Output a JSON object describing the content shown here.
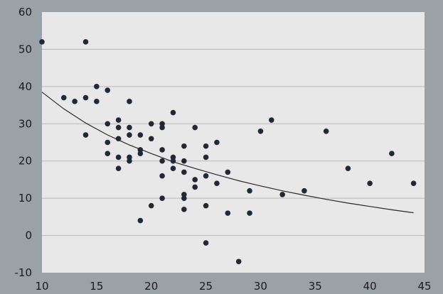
{
  "chart_data": {
    "type": "scatter",
    "title": "",
    "xlabel": "",
    "ylabel": "",
    "xlim": [
      10,
      45
    ],
    "ylim": [
      -10,
      60
    ],
    "x_ticks": [
      10,
      15,
      20,
      25,
      30,
      35,
      40,
      45
    ],
    "y_ticks": [
      -10,
      0,
      10,
      20,
      30,
      40,
      50,
      60
    ],
    "grid": "horizontal",
    "legend": "none",
    "colors": {
      "background": "#9aa2a8",
      "plot_area": "#e8e8e8",
      "gridline": "#b8b8b8",
      "point": "#1e2a36",
      "fit_line": "#2a2a2a"
    },
    "series": [
      {
        "points": [
          [
            10,
            52
          ],
          [
            12,
            37
          ],
          [
            13,
            36
          ],
          [
            14,
            52
          ],
          [
            14,
            37
          ],
          [
            14,
            27
          ],
          [
            15,
            40
          ],
          [
            15,
            36
          ],
          [
            16,
            39
          ],
          [
            16,
            30
          ],
          [
            16,
            25
          ],
          [
            16,
            22
          ],
          [
            17,
            31
          ],
          [
            17,
            29
          ],
          [
            17,
            26
          ],
          [
            17,
            21
          ],
          [
            17,
            18
          ],
          [
            18,
            36
          ],
          [
            18,
            29
          ],
          [
            18,
            27
          ],
          [
            18,
            21
          ],
          [
            18,
            20
          ],
          [
            19,
            27
          ],
          [
            19,
            23
          ],
          [
            19,
            22
          ],
          [
            19,
            4
          ],
          [
            20,
            30
          ],
          [
            20,
            26
          ],
          [
            20,
            8
          ],
          [
            21,
            30
          ],
          [
            21,
            29
          ],
          [
            21,
            23
          ],
          [
            21,
            20
          ],
          [
            21,
            16
          ],
          [
            21,
            10
          ],
          [
            22,
            33
          ],
          [
            22,
            21
          ],
          [
            22,
            20
          ],
          [
            22,
            18
          ],
          [
            23,
            24
          ],
          [
            23,
            20
          ],
          [
            23,
            17
          ],
          [
            23,
            11
          ],
          [
            23,
            10
          ],
          [
            23,
            7
          ],
          [
            24,
            29
          ],
          [
            24,
            15
          ],
          [
            24,
            13
          ],
          [
            25,
            24
          ],
          [
            25,
            21
          ],
          [
            25,
            16
          ],
          [
            25,
            8
          ],
          [
            25,
            -2
          ],
          [
            26,
            25
          ],
          [
            26,
            14
          ],
          [
            27,
            17
          ],
          [
            27,
            6
          ],
          [
            28,
            -7
          ],
          [
            29,
            12
          ],
          [
            29,
            6
          ],
          [
            30,
            28
          ],
          [
            31,
            31
          ],
          [
            32,
            11
          ],
          [
            34,
            12
          ],
          [
            36,
            28
          ],
          [
            38,
            18
          ],
          [
            40,
            14
          ],
          [
            42,
            22
          ],
          [
            44,
            14
          ]
        ]
      }
    ],
    "trendline": {
      "type": "power",
      "points": [
        [
          10,
          38.5
        ],
        [
          12,
          34.0
        ],
        [
          14,
          30.2
        ],
        [
          16,
          27.0
        ],
        [
          18,
          24.3
        ],
        [
          20,
          22.0
        ],
        [
          22,
          19.8
        ],
        [
          24,
          18.0
        ],
        [
          26,
          16.3
        ],
        [
          28,
          14.7
        ],
        [
          30,
          13.3
        ],
        [
          32,
          12.0
        ],
        [
          34,
          10.8
        ],
        [
          36,
          9.7
        ],
        [
          38,
          8.7
        ],
        [
          40,
          7.8
        ],
        [
          42,
          6.9
        ],
        [
          44,
          6.1
        ]
      ]
    }
  }
}
